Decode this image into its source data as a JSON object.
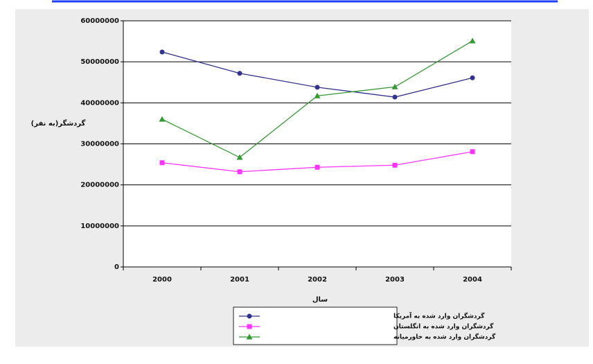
{
  "chart_data": {
    "type": "line",
    "y_label": "گردشگر(به نفر)",
    "x_label": "سال",
    "categories": [
      "2000",
      "2001",
      "2002",
      "2003",
      "2004"
    ],
    "series": [
      {
        "name": "گردشگران وارد شده به آمریکا",
        "color": "#33338f",
        "marker": "circle",
        "values": [
          52400000,
          47200000,
          43800000,
          41400000,
          46100000
        ]
      },
      {
        "name": "گردشگران وارد شده به انگلستان",
        "color": "#ff33ff",
        "marker": "square",
        "values": [
          25400000,
          23200000,
          24300000,
          24800000,
          28100000
        ]
      },
      {
        "name": "گردشگران وارد شده به خاورمیانه",
        "color": "#339933",
        "marker": "triangle",
        "values": [
          36000000,
          26700000,
          41700000,
          43900000,
          55100000
        ]
      }
    ],
    "ylim": [
      0,
      60000000
    ],
    "yticks": [
      0,
      10000000,
      20000000,
      30000000,
      40000000,
      50000000,
      60000000
    ],
    "grid": true
  }
}
